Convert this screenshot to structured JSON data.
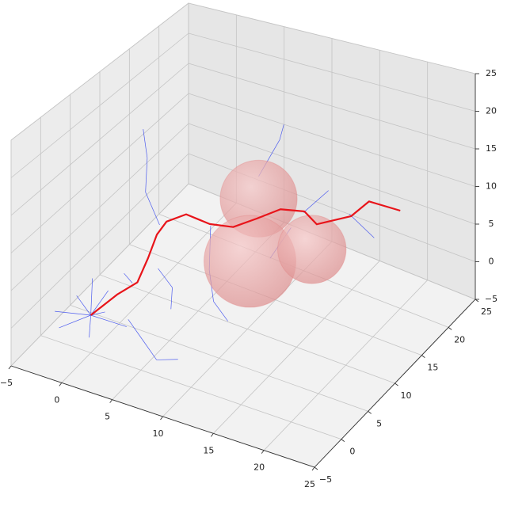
{
  "chart_data": {
    "type": "line3d",
    "xlim": [
      -5,
      25
    ],
    "ylim": [
      -5,
      25
    ],
    "zlim": [
      -5,
      25
    ],
    "xticks": [
      {
        "value": -5,
        "label": "−5"
      },
      0,
      5,
      10,
      15,
      20,
      25
    ],
    "yticks": [
      {
        "value": -5,
        "label": "−5"
      },
      0,
      5,
      10,
      15,
      20,
      25
    ],
    "zticks": [
      {
        "value": -5,
        "label": "−5"
      },
      0,
      5,
      10,
      15,
      20,
      25
    ],
    "grid": true,
    "path": {
      "color": "#e8141a",
      "x": [
        0,
        2.1,
        3.5,
        4,
        4.3,
        4.7,
        6.1,
        7.9,
        9.7,
        11.5,
        12.8,
        14.1,
        14.8,
        17.2,
        17.9,
        20
      ],
      "y": [
        0,
        1,
        2,
        3,
        4,
        5,
        6,
        7,
        8,
        9,
        11,
        13,
        14,
        16,
        18,
        20
      ],
      "z": [
        0,
        2.9,
        4.3,
        7,
        9.5,
        10.7,
        11.5,
        10.2,
        9.8,
        10.9,
        11.3,
        10.2,
        8.1,
        8.8,
        9.7,
        8
      ]
    },
    "tree": {
      "color": "#3344ee",
      "edges": [
        [
          [
            0,
            0,
            0
          ],
          [
            -2,
            1,
            1
          ]
        ],
        [
          [
            0,
            0,
            0
          ],
          [
            -3,
            -1,
            0
          ]
        ],
        [
          [
            0,
            0,
            0
          ],
          [
            1,
            -2,
            -1
          ]
        ],
        [
          [
            0,
            0,
            0
          ],
          [
            -1,
            2,
            3
          ]
        ],
        [
          [
            0,
            0,
            0
          ],
          [
            2,
            -1,
            2
          ]
        ],
        [
          [
            0,
            0,
            0
          ],
          [
            -2,
            -2,
            -1
          ]
        ],
        [
          [
            0,
            0,
            0
          ],
          [
            0,
            3,
            1
          ]
        ],
        [
          [
            0,
            0,
            0
          ],
          [
            3,
            1,
            -1
          ]
        ],
        [
          [
            2,
            3,
            -2
          ],
          [
            4,
            2,
            -3
          ]
        ],
        [
          [
            4,
            2,
            -3
          ],
          [
            6,
            1,
            -4
          ]
        ],
        [
          [
            6,
            1,
            -4
          ],
          [
            7,
            3,
            -5
          ]
        ],
        [
          [
            4,
            5,
            10
          ],
          [
            2,
            6,
            13
          ]
        ],
        [
          [
            2,
            6,
            13
          ],
          [
            1,
            8,
            16
          ]
        ],
        [
          [
            1,
            8,
            16
          ],
          [
            0,
            9,
            19
          ]
        ],
        [
          [
            10,
            12,
            14
          ],
          [
            11,
            14,
            18
          ]
        ],
        [
          [
            11,
            14,
            18
          ],
          [
            12,
            13,
            21
          ]
        ],
        [
          [
            8,
            7,
            10
          ],
          [
            9,
            5,
            6
          ]
        ],
        [
          [
            9,
            5,
            6
          ],
          [
            10,
            4,
            3
          ]
        ],
        [
          [
            10,
            4,
            3
          ],
          [
            12,
            3,
            2
          ]
        ],
        [
          [
            14,
            13,
            10
          ],
          [
            16,
            14,
            13
          ]
        ],
        [
          [
            17,
            16,
            9
          ],
          [
            19,
            17,
            6
          ]
        ],
        [
          [
            15,
            9,
            11
          ],
          [
            14,
            7,
            8
          ]
        ],
        [
          [
            5,
            3,
            6
          ],
          [
            7,
            2,
            5
          ]
        ],
        [
          [
            7,
            2,
            5
          ],
          [
            8,
            0,
            4
          ]
        ],
        [
          [
            3,
            2,
            4
          ],
          [
            1,
            4,
            3
          ]
        ]
      ]
    },
    "obstacles": {
      "color": "#e07a7a",
      "centers": [
        [
          10,
          12,
          11
        ],
        [
          13.1,
          5,
          8.6
        ],
        [
          16,
          11,
          7.3
        ]
      ],
      "radii": [
        3.6,
        4.3,
        3.2
      ]
    }
  }
}
